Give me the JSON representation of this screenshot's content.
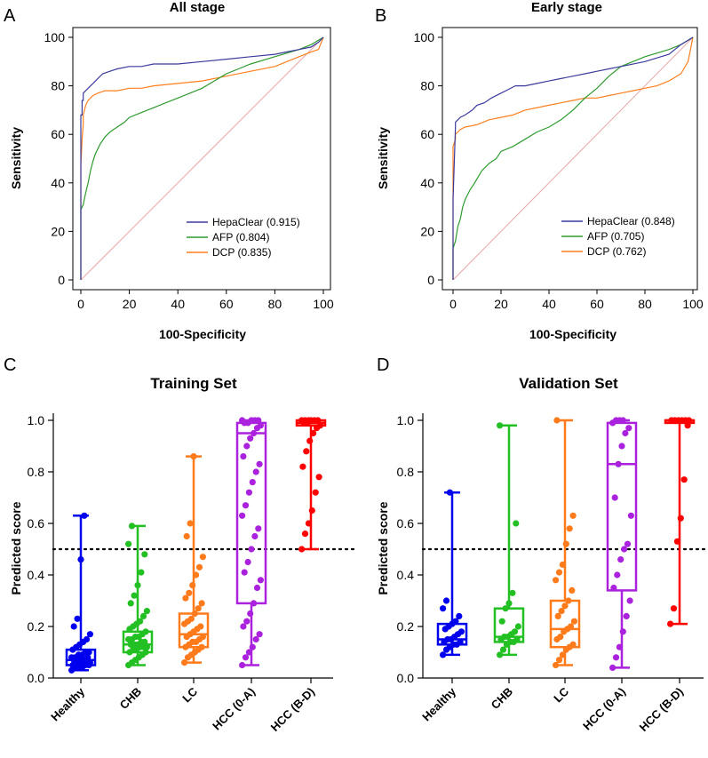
{
  "chart_data": [
    {
      "panel": "A",
      "type": "line",
      "title": "All stage",
      "xlabel": "100-Specificity",
      "ylabel": "Sensitivity",
      "xlim": [
        0,
        100
      ],
      "ylim": [
        0,
        100
      ],
      "xticks": [
        "0",
        "20",
        "40",
        "60",
        "80",
        "100"
      ],
      "yticks": [
        "0",
        "20",
        "40",
        "60",
        "80",
        "100"
      ],
      "series": [
        {
          "name": "HepaClear (0.915)",
          "color": "#3b3b9e",
          "x": [
            0,
            0,
            0.5,
            0.5,
            1,
            1,
            2,
            3,
            4,
            5,
            7,
            9,
            12,
            15,
            20,
            25,
            30,
            40,
            50,
            60,
            70,
            80,
            85,
            90,
            95,
            98,
            100
          ],
          "y": [
            0,
            68,
            68,
            74,
            74,
            77,
            78,
            79,
            80,
            81,
            83,
            85,
            86,
            87,
            88,
            88,
            89,
            89,
            90,
            91,
            92,
            93,
            94,
            95,
            96,
            98,
            100
          ]
        },
        {
          "name": "AFP (0.804)",
          "color": "#2e9b2e",
          "x": [
            0,
            0,
            1,
            2,
            3,
            4,
            5,
            6,
            8,
            10,
            12,
            15,
            18,
            20,
            25,
            30,
            35,
            40,
            45,
            50,
            55,
            60,
            65,
            70,
            80,
            90,
            95,
            100
          ],
          "y": [
            0,
            29,
            31,
            36,
            40,
            45,
            49,
            52,
            56,
            59,
            61,
            63,
            65,
            67,
            69,
            71,
            73,
            75,
            77,
            79,
            82,
            85,
            87,
            89,
            92,
            95,
            97,
            100
          ]
        },
        {
          "name": "DCP (0.835)",
          "color": "#ff7f1e",
          "x": [
            0,
            0,
            0.5,
            1,
            1,
            2,
            3,
            5,
            7,
            10,
            15,
            20,
            25,
            30,
            40,
            50,
            60,
            70,
            80,
            85,
            90,
            95,
            98,
            100
          ],
          "y": [
            0,
            47,
            58,
            64,
            68,
            72,
            74,
            76,
            77,
            78,
            78,
            79,
            79,
            80,
            81,
            82,
            84,
            86,
            88,
            90,
            92,
            94,
            95,
            100
          ]
        }
      ]
    },
    {
      "panel": "B",
      "type": "line",
      "title": "Early stage",
      "xlabel": "100-Specificity",
      "ylabel": "Sensitivity",
      "xlim": [
        0,
        100
      ],
      "ylim": [
        0,
        100
      ],
      "xticks": [
        "0",
        "20",
        "40",
        "60",
        "80",
        "100"
      ],
      "yticks": [
        "0",
        "20",
        "40",
        "60",
        "80",
        "100"
      ],
      "series": [
        {
          "name": "HepaClear (0.848)",
          "color": "#3b3b9e",
          "x": [
            0,
            0,
            1,
            1,
            2,
            3,
            5,
            8,
            10,
            13,
            16,
            20,
            22,
            26,
            30,
            35,
            40,
            45,
            50,
            55,
            60,
            65,
            70,
            80,
            90,
            95,
            100
          ],
          "y": [
            0,
            33,
            63,
            65,
            66,
            67,
            68,
            70,
            72,
            73,
            75,
            77,
            78,
            80,
            80,
            81,
            82,
            83,
            84,
            85,
            86,
            87,
            88,
            90,
            93,
            97,
            100
          ]
        },
        {
          "name": "AFP (0.705)",
          "color": "#2e9b2e",
          "x": [
            0,
            0,
            1,
            2,
            3,
            4,
            5,
            7,
            9,
            12,
            15,
            18,
            20,
            25,
            30,
            35,
            40,
            45,
            50,
            55,
            60,
            65,
            70,
            75,
            80,
            90,
            95,
            100
          ],
          "y": [
            0,
            13,
            16,
            22,
            25,
            30,
            33,
            37,
            40,
            45,
            48,
            50,
            53,
            55,
            58,
            61,
            63,
            66,
            70,
            75,
            79,
            84,
            88,
            90,
            92,
            95,
            97,
            100
          ]
        },
        {
          "name": "DCP (0.762)",
          "color": "#ff7f1e",
          "x": [
            0,
            0,
            1,
            1,
            2,
            3,
            5,
            10,
            15,
            20,
            25,
            30,
            40,
            50,
            55,
            60,
            65,
            70,
            75,
            80,
            85,
            90,
            95,
            98,
            100
          ],
          "y": [
            0,
            55,
            58,
            60,
            61,
            62,
            63,
            64,
            66,
            67,
            68,
            70,
            72,
            74,
            75,
            75,
            76,
            77,
            78,
            79,
            80,
            82,
            85,
            90,
            100
          ]
        }
      ]
    },
    {
      "panel": "C",
      "type": "box",
      "title": "Training Set",
      "ylabel": "Predicted score",
      "ylim": [
        0,
        1
      ],
      "yticks": [
        "0.0",
        "0.2",
        "0.4",
        "0.6",
        "0.8",
        "1.0"
      ],
      "categories": [
        "Healthy",
        "CHB",
        "LC",
        "HCC (0-A)",
        "HCC (B-D)"
      ],
      "colors": [
        "#0000ee",
        "#22c022",
        "#ff7a1a",
        "#aa22dd",
        "#ff0000"
      ],
      "threshold": 0.5,
      "boxes": [
        {
          "min": 0.03,
          "q1": 0.05,
          "median": 0.07,
          "q3": 0.11,
          "max": 0.63
        },
        {
          "min": 0.05,
          "q1": 0.1,
          "median": 0.13,
          "q3": 0.18,
          "max": 0.59
        },
        {
          "min": 0.06,
          "q1": 0.12,
          "median": 0.17,
          "q3": 0.25,
          "max": 0.86
        },
        {
          "min": 0.05,
          "q1": 0.29,
          "median": 0.95,
          "q3": 0.99,
          "max": 1.0
        },
        {
          "min": 0.5,
          "q1": 0.98,
          "median": 0.99,
          "q3": 1.0,
          "max": 1.0
        }
      ],
      "points": [
        [
          0.03,
          0.04,
          0.04,
          0.04,
          0.05,
          0.05,
          0.05,
          0.05,
          0.06,
          0.06,
          0.06,
          0.06,
          0.07,
          0.07,
          0.07,
          0.07,
          0.08,
          0.08,
          0.08,
          0.09,
          0.09,
          0.1,
          0.1,
          0.11,
          0.12,
          0.13,
          0.14,
          0.15,
          0.17,
          0.2,
          0.23,
          0.46,
          0.63
        ],
        [
          0.05,
          0.06,
          0.07,
          0.08,
          0.09,
          0.1,
          0.1,
          0.11,
          0.11,
          0.12,
          0.12,
          0.12,
          0.13,
          0.13,
          0.13,
          0.14,
          0.14,
          0.15,
          0.15,
          0.16,
          0.16,
          0.17,
          0.18,
          0.19,
          0.2,
          0.21,
          0.22,
          0.24,
          0.26,
          0.29,
          0.32,
          0.36,
          0.41,
          0.48,
          0.52,
          0.59
        ],
        [
          0.06,
          0.08,
          0.09,
          0.1,
          0.11,
          0.12,
          0.12,
          0.13,
          0.14,
          0.14,
          0.15,
          0.16,
          0.16,
          0.17,
          0.18,
          0.19,
          0.2,
          0.21,
          0.22,
          0.23,
          0.25,
          0.27,
          0.29,
          0.31,
          0.33,
          0.36,
          0.4,
          0.43,
          0.47,
          0.55,
          0.6,
          0.86
        ],
        [
          0.05,
          0.08,
          0.1,
          0.12,
          0.15,
          0.17,
          0.2,
          0.22,
          0.25,
          0.29,
          0.35,
          0.38,
          0.41,
          0.45,
          0.5,
          0.55,
          0.58,
          0.63,
          0.67,
          0.72,
          0.76,
          0.8,
          0.83,
          0.86,
          0.9,
          0.93,
          0.95,
          0.97,
          0.98,
          0.99,
          0.99,
          1.0,
          1.0,
          1.0,
          1.0
        ],
        [
          0.5,
          0.56,
          0.6,
          0.65,
          0.72,
          0.78,
          0.82,
          0.88,
          0.92,
          0.95,
          0.97,
          0.98,
          0.99,
          0.99,
          1.0,
          1.0,
          1.0,
          1.0,
          1.0,
          1.0
        ]
      ]
    },
    {
      "panel": "D",
      "type": "box",
      "title": "Validation Set",
      "ylabel": "Predicted score",
      "ylim": [
        0,
        1
      ],
      "yticks": [
        "0.0",
        "0.2",
        "0.4",
        "0.6",
        "0.8",
        "1.0"
      ],
      "categories": [
        "Healthy",
        "CHB",
        "LC",
        "HCC (0-A)",
        "HCC (B-D)"
      ],
      "colors": [
        "#0000ee",
        "#22c022",
        "#ff7a1a",
        "#aa22dd",
        "#ff0000"
      ],
      "threshold": 0.5,
      "boxes": [
        {
          "min": 0.09,
          "q1": 0.13,
          "median": 0.15,
          "q3": 0.21,
          "max": 0.72
        },
        {
          "min": 0.09,
          "q1": 0.14,
          "median": 0.16,
          "q3": 0.27,
          "max": 0.98
        },
        {
          "min": 0.05,
          "q1": 0.12,
          "median": 0.19,
          "q3": 0.3,
          "max": 1.0
        },
        {
          "min": 0.04,
          "q1": 0.34,
          "median": 0.83,
          "q3": 0.99,
          "max": 1.0
        },
        {
          "min": 0.21,
          "q1": 0.99,
          "median": 1.0,
          "q3": 1.0,
          "max": 1.0
        }
      ],
      "points": [
        [
          0.09,
          0.11,
          0.12,
          0.13,
          0.13,
          0.14,
          0.14,
          0.15,
          0.15,
          0.16,
          0.17,
          0.18,
          0.19,
          0.2,
          0.21,
          0.22,
          0.24,
          0.27,
          0.3,
          0.72
        ],
        [
          0.09,
          0.11,
          0.13,
          0.14,
          0.14,
          0.15,
          0.15,
          0.16,
          0.16,
          0.17,
          0.18,
          0.2,
          0.22,
          0.27,
          0.29,
          0.33,
          0.6,
          0.98
        ],
        [
          0.05,
          0.07,
          0.09,
          0.11,
          0.12,
          0.13,
          0.15,
          0.16,
          0.18,
          0.19,
          0.2,
          0.22,
          0.24,
          0.26,
          0.28,
          0.3,
          0.34,
          0.38,
          0.41,
          0.44,
          0.52,
          0.58,
          0.63,
          1.0
        ],
        [
          0.04,
          0.08,
          0.12,
          0.18,
          0.24,
          0.3,
          0.35,
          0.4,
          0.46,
          0.5,
          0.52,
          0.63,
          0.7,
          0.83,
          0.9,
          0.95,
          0.97,
          0.99,
          1.0,
          1.0,
          1.0
        ],
        [
          0.21,
          0.27,
          0.53,
          0.62,
          0.77,
          0.98,
          1.0,
          1.0,
          1.0,
          1.0,
          1.0,
          1.0
        ]
      ]
    }
  ]
}
